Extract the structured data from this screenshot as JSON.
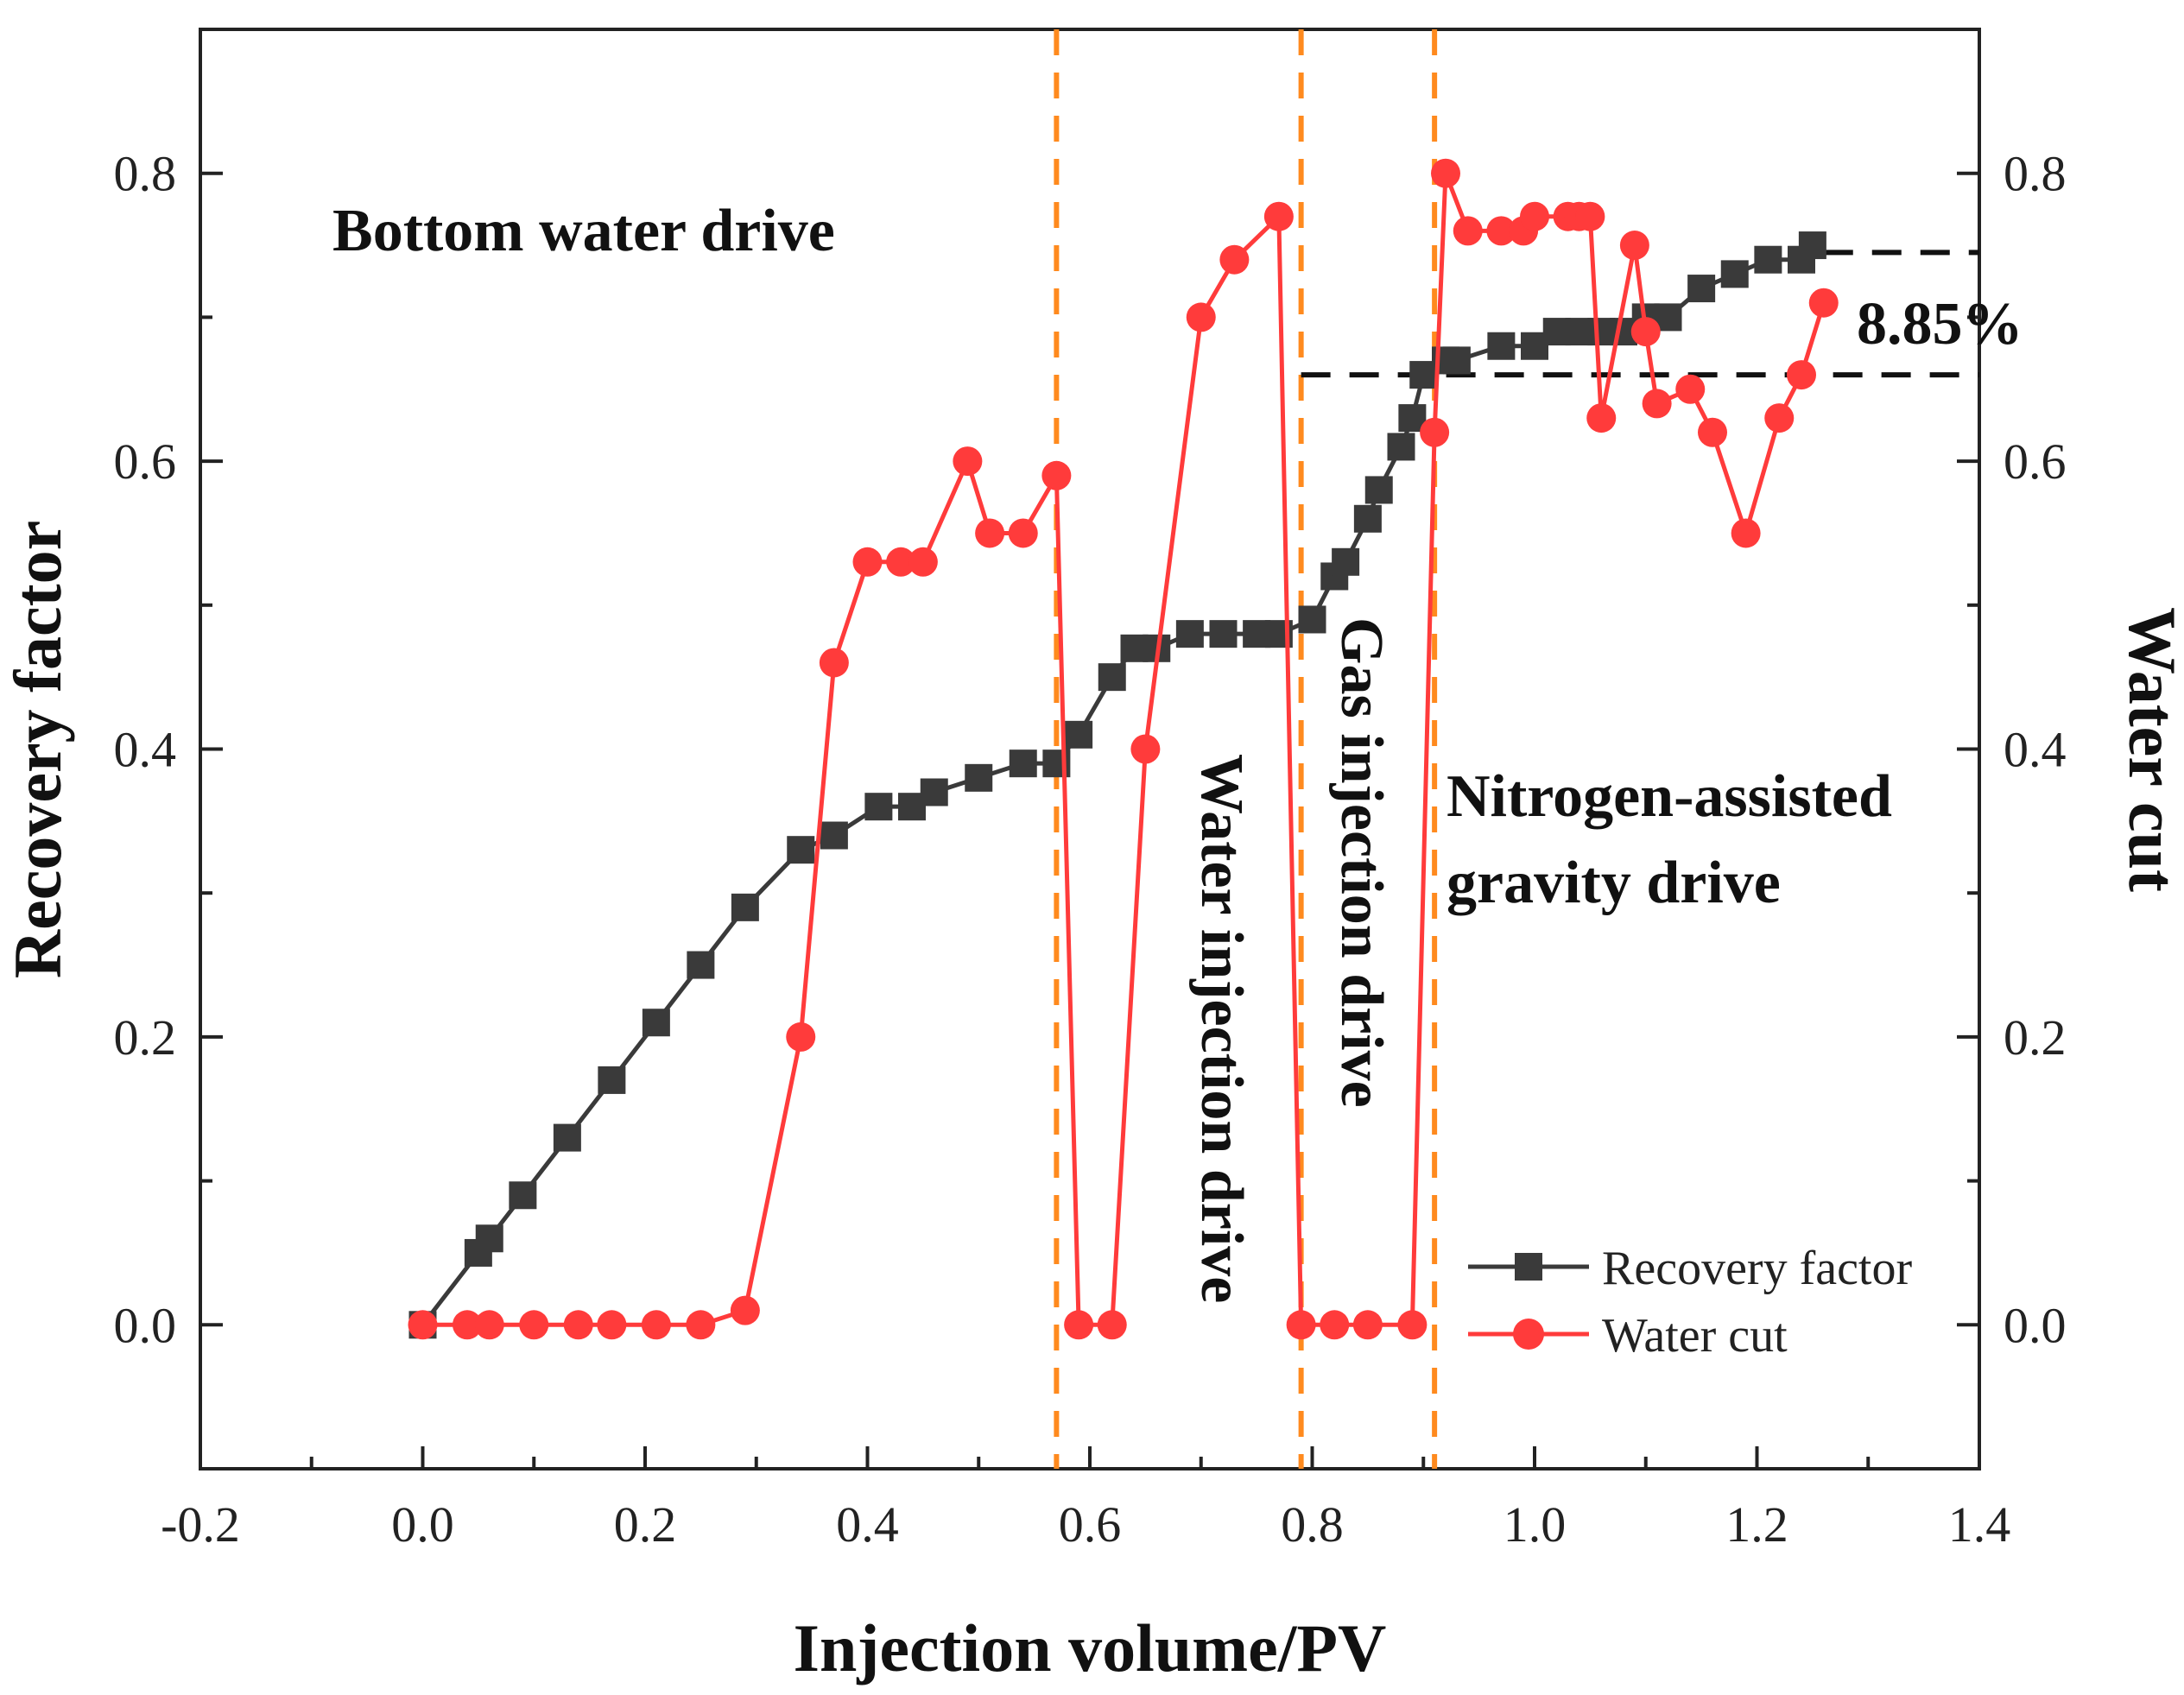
{
  "chart_data": {
    "type": "line",
    "xlabel": "Injection volume/PV",
    "ylabel_left": "Recovery factor",
    "ylabel_right": "Water cut",
    "xlim": [
      -0.2,
      1.4
    ],
    "ylim": [
      -0.1,
      0.9
    ],
    "x_ticks": [
      -0.2,
      0.0,
      0.2,
      0.4,
      0.6,
      0.8,
      1.0,
      1.2,
      1.4
    ],
    "x_tick_labels": [
      "-0.2",
      "0.0",
      "0.2",
      "0.4",
      "0.6",
      "0.8",
      "1.0",
      "1.2",
      "1.4"
    ],
    "y_ticks": [
      0.0,
      0.2,
      0.4,
      0.6,
      0.8
    ],
    "y_tick_labels": [
      "0.0",
      "0.2",
      "0.4",
      "0.6",
      "0.8"
    ],
    "series": [
      {
        "name": "Recovery factor",
        "color": "#3a3a3a",
        "marker": "square",
        "x": [
          0.0,
          0.05,
          0.06,
          0.09,
          0.13,
          0.17,
          0.21,
          0.25,
          0.29,
          0.34,
          0.37,
          0.41,
          0.44,
          0.46,
          0.5,
          0.54,
          0.57,
          0.59,
          0.62,
          0.64,
          0.66,
          0.69,
          0.72,
          0.75,
          0.77,
          0.8,
          0.82,
          0.83,
          0.85,
          0.86,
          0.88,
          0.89,
          0.9,
          0.92,
          0.93,
          0.97,
          1.0,
          1.02,
          1.04,
          1.06,
          1.08,
          1.1,
          1.12,
          1.15,
          1.18,
          1.21,
          1.24,
          1.25
        ],
        "values": [
          0.0,
          0.05,
          0.06,
          0.09,
          0.13,
          0.17,
          0.21,
          0.25,
          0.29,
          0.33,
          0.34,
          0.36,
          0.36,
          0.37,
          0.38,
          0.39,
          0.39,
          0.41,
          0.45,
          0.47,
          0.47,
          0.48,
          0.48,
          0.48,
          0.48,
          0.49,
          0.52,
          0.53,
          0.56,
          0.58,
          0.61,
          0.63,
          0.66,
          0.67,
          0.67,
          0.68,
          0.68,
          0.69,
          0.69,
          0.69,
          0.69,
          0.7,
          0.7,
          0.72,
          0.73,
          0.74,
          0.74,
          0.75
        ]
      },
      {
        "name": "Water cut",
        "color": "#ff3b3b",
        "marker": "circle",
        "x": [
          0.0,
          0.04,
          0.06,
          0.1,
          0.14,
          0.17,
          0.21,
          0.25,
          0.29,
          0.34,
          0.37,
          0.4,
          0.43,
          0.45,
          0.49,
          0.51,
          0.54,
          0.57,
          0.59,
          0.62,
          0.65,
          0.7,
          0.73,
          0.77,
          0.79,
          0.82,
          0.85,
          0.89,
          0.91,
          0.92,
          0.94,
          0.97,
          0.99,
          1.0,
          1.03,
          1.04,
          1.05,
          1.06,
          1.09,
          1.1,
          1.11,
          1.14,
          1.16,
          1.19,
          1.22,
          1.24,
          1.26
        ],
        "values": [
          0.0,
          0.0,
          0.0,
          0.0,
          0.0,
          0.0,
          0.0,
          0.0,
          0.01,
          0.2,
          0.46,
          0.53,
          0.53,
          0.53,
          0.6,
          0.55,
          0.55,
          0.59,
          0.0,
          0.0,
          0.4,
          0.7,
          0.74,
          0.77,
          0.0,
          0.0,
          0.0,
          0.0,
          0.62,
          0.8,
          0.76,
          0.76,
          0.76,
          0.77,
          0.77,
          0.77,
          0.77,
          0.63,
          0.75,
          0.69,
          0.64,
          0.65,
          0.62,
          0.55,
          0.63,
          0.66,
          0.71
        ]
      }
    ],
    "phase_boundaries_x": [
      0.57,
      0.79,
      0.91
    ],
    "annotations": [
      {
        "text": "Bottom water drive"
      },
      {
        "text": "Water injection drive"
      },
      {
        "text": "Gas injection drive"
      },
      {
        "text": "Nitrogen-assisted"
      },
      {
        "text": "gravity drive"
      },
      {
        "text": "8.85%"
      }
    ],
    "reference_lines_y": [
      0.66,
      0.745
    ],
    "legend": {
      "position": "bottom-right",
      "entries": [
        "Recovery factor",
        "Water cut"
      ]
    }
  }
}
